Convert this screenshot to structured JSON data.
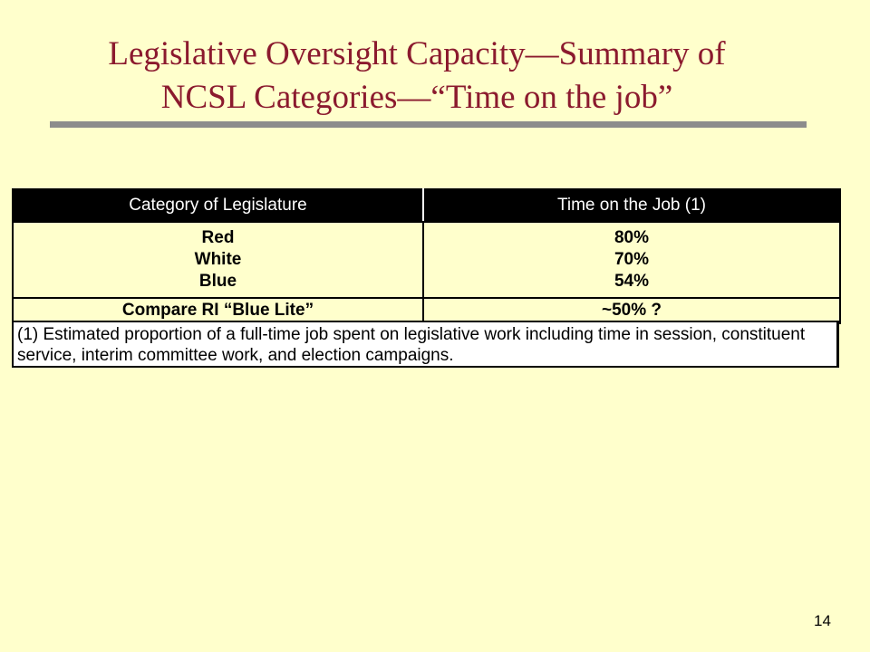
{
  "slide": {
    "title_line1": "Legislative Oversight Capacity—Summary of",
    "title_line2": "NCSL Categories—“Time on the job”",
    "page_number": "14"
  },
  "table": {
    "headers": [
      "Category of Legislature",
      "Time on the Job (1)"
    ],
    "categories": [
      "Red",
      "White",
      "Blue"
    ],
    "times": [
      "80%",
      "70%",
      "54%"
    ],
    "compare": {
      "label": "Compare RI “Blue Lite”",
      "value": "~50% ?"
    },
    "footnote": "(1) Estimated proportion of a full-time job spent on legislative work including time in session, constituent service, interim committee work, and election campaigns."
  },
  "colors": {
    "background": "#FFFFCC",
    "title": "#8B1A2E",
    "rule": "#8C8C8C",
    "header_bg": "#000000"
  }
}
